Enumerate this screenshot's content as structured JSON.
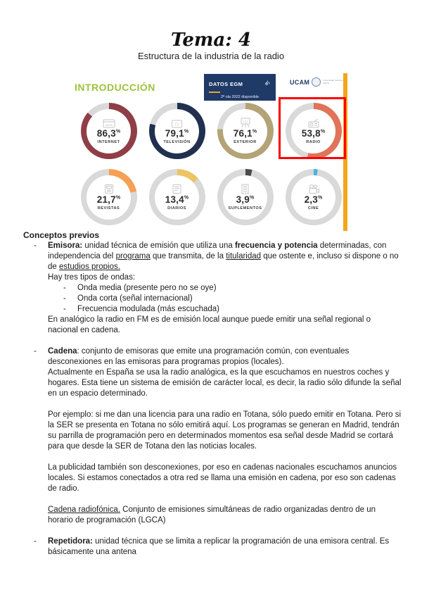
{
  "page": {
    "title": "Tema: 4",
    "subtitle": "Estructura de la industria de la radio"
  },
  "infographic": {
    "intro_label": "INTRODUCCIÓN",
    "egm_box": {
      "title": "DATOS EGM",
      "subtitle": "2ª ola 2022 disponible"
    },
    "ucam": {
      "text": "UCAM",
      "subtext": "Universidad Católica de Murcia"
    },
    "accent_bar_color": "#F2A71B",
    "highlight_color": "#FF0000"
  },
  "chart_data": {
    "type": "pie",
    "title": "DATOS EGM",
    "subtitle": "2ª ola 2022 disponible",
    "unit": "%",
    "note": "grid of 8 donut gauges, penetration of each medium",
    "track_color": "#D9D9D9",
    "items": [
      {
        "label": "INTERNET",
        "value": 86.3,
        "display": "86,3",
        "color": "#8F3E47",
        "icon": "browser-www-icon",
        "highlighted": false
      },
      {
        "label": "TELEVISIÓN",
        "value": 79.1,
        "display": "79,1",
        "color": "#21304F",
        "icon": "tv-icon",
        "highlighted": false
      },
      {
        "label": "EXTERIOR",
        "value": 76.1,
        "display": "76,1",
        "color": "#B3A376",
        "icon": "billboard-icon",
        "highlighted": false
      },
      {
        "label": "RADIO",
        "value": 53.8,
        "display": "53,8",
        "color": "#E0735A",
        "icon": "radio-icon",
        "highlighted": true
      },
      {
        "label": "REVISTAS",
        "value": 21.7,
        "display": "21,7",
        "color": "#F5A054",
        "icon": "magazine-icon",
        "highlighted": false
      },
      {
        "label": "DIARIOS",
        "value": 13.4,
        "display": "13,4",
        "color": "#EDC464",
        "icon": "newspaper-icon",
        "highlighted": false
      },
      {
        "label": "SUPLEMENTOS",
        "value": 3.9,
        "display": "3,9",
        "color": "#4A4A4A",
        "icon": "supplement-icon",
        "highlighted": false
      },
      {
        "label": "CINE",
        "value": 2.3,
        "display": "2,3",
        "color": "#45B5E0",
        "icon": "cinema-camera-icon",
        "highlighted": false
      }
    ]
  },
  "content": {
    "heading": "Conceptos previos",
    "sections": [
      {
        "type": "bullet",
        "segments": [
          {
            "t": "Emisora:",
            "b": true
          },
          {
            "t": " unidad técnica de emisión que utiliza una "
          },
          {
            "t": "frecuencia y potencia",
            "b": true
          },
          {
            "t": " determinadas, con independencia del "
          },
          {
            "t": "programa",
            "u": true
          },
          {
            "t": " que transmita, de la "
          },
          {
            "t": "titularidad",
            "u": true
          },
          {
            "t": " que ostente e, incluso si dispone o no de "
          },
          {
            "t": "estudios propios.",
            "u": true
          }
        ]
      },
      {
        "type": "plain",
        "segments": [
          {
            "t": "Hay tres tipos de ondas:"
          }
        ]
      },
      {
        "type": "subbullet",
        "segments": [
          {
            "t": "Onda media (presente pero no se oye)"
          }
        ]
      },
      {
        "type": "subbullet",
        "segments": [
          {
            "t": "Onda corta (señal internacional)"
          }
        ]
      },
      {
        "type": "subbullet",
        "segments": [
          {
            "t": "Frecuencia modulada (más escuchada)"
          }
        ]
      },
      {
        "type": "plain",
        "segments": [
          {
            "t": "En analógico la radio en FM es de emisión local aunque puede emitir una señal regional o nacional en cadena."
          }
        ]
      },
      {
        "type": "spacer"
      },
      {
        "type": "bullet",
        "segments": [
          {
            "t": "Cadena",
            "b": true
          },
          {
            "t": ": conjunto de emisoras que emite una programación común, con eventuales desconexiones en las emisoras para programas propios (locales)."
          }
        ]
      },
      {
        "type": "plain",
        "segments": [
          {
            "t": "Actualmente en España se usa la radio analógica, es la que escuchamos en nuestros coches y hogares. Esta tiene un sistema de emisión de carácter local, es decir, la radio sólo difunde la señal en un espacio determinado."
          }
        ]
      },
      {
        "type": "spacer"
      },
      {
        "type": "plain",
        "segments": [
          {
            "t": "Por ejemplo: si me dan una licencia para una radio en Totana, sólo puedo emitir en Totana. Pero si la SER se presenta en Totana no sólo emitirá aquí. Los programas se generan en Madrid, tendrán su parrilla de programación pero en determinados momentos esa señal desde Madrid se cortará para que desde la SER de Totana den las noticias locales."
          }
        ]
      },
      {
        "type": "spacer"
      },
      {
        "type": "plain",
        "segments": [
          {
            "t": "La publicidad también son desconexiones, por eso en cadenas nacionales escuchamos anuncios locales. Si estamos conectados a otra red se llama una emisión en cadena, por eso son cadenas de radio."
          }
        ]
      },
      {
        "type": "spacer"
      },
      {
        "type": "plain",
        "segments": [
          {
            "t": "Cadena radiofónica.",
            "u": true
          },
          {
            "t": " Conjunto de emisiones simultáneas de radio organizadas dentro de un horario de programación (LGCA)"
          }
        ]
      },
      {
        "type": "spacer"
      },
      {
        "type": "bullet",
        "segments": [
          {
            "t": "Repetidora:",
            "b": true
          },
          {
            "t": " unidad técnica que se limita a replicar la programación de una emisora central. Es básicamente una antena"
          }
        ]
      }
    ]
  }
}
